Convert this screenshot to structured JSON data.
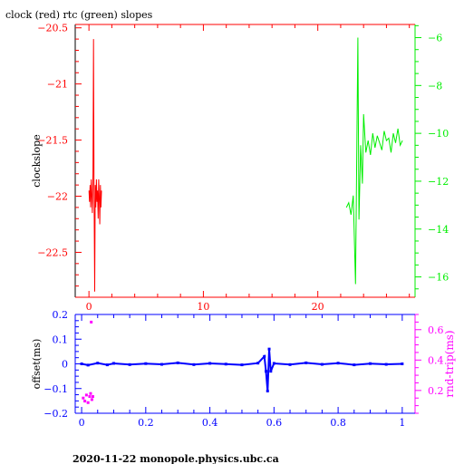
{
  "title": "clock (red) rtc (green) slopes",
  "footer": "2020-11-22 monopole.physics.ubc.ca",
  "colors": {
    "red": "#ff0000",
    "green": "#00ee00",
    "blue": "#0000ff",
    "magenta": "#ff00ff",
    "black": "#000000"
  },
  "chart_data": [
    {
      "type": "line",
      "title": "clock (red) rtc (green) slopes",
      "ylabel": "clockslope",
      "y2label": "",
      "xlim": [
        -1.2,
        28.5
      ],
      "ylim": [
        -22.9,
        -20.47
      ],
      "y2lim": [
        -16.85,
        -5.45
      ],
      "xticks": [
        0,
        10,
        20
      ],
      "yticks": [
        -20.5,
        -21,
        -21.5,
        -22,
        -22.5
      ],
      "y2ticks": [
        -6,
        -8,
        -10,
        -12,
        -14,
        -16
      ],
      "series": [
        {
          "name": "clock",
          "axis": "left",
          "color": "red",
          "x": [
            0.0,
            0.05,
            0.1,
            0.15,
            0.2,
            0.25,
            0.3,
            0.35,
            0.4,
            0.45,
            0.5,
            0.55,
            0.6,
            0.65,
            0.7,
            0.75,
            0.8,
            0.85,
            0.9,
            0.95,
            1.0,
            1.05,
            1.1
          ],
          "y": [
            -21.95,
            -22.05,
            -21.9,
            -22.1,
            -21.85,
            -22.0,
            -22.15,
            -21.8,
            -20.6,
            -22.0,
            -22.85,
            -21.9,
            -22.1,
            -21.85,
            -22.05,
            -21.95,
            -22.2,
            -21.85,
            -22.0,
            -22.25,
            -21.9,
            -22.1,
            -21.95
          ]
        },
        {
          "name": "rtc",
          "axis": "right",
          "color": "green",
          "x": [
            22.5,
            22.7,
            22.9,
            23.1,
            23.3,
            23.5,
            23.6,
            23.75,
            23.9,
            24.0,
            24.2,
            24.4,
            24.6,
            24.8,
            25.0,
            25.2,
            25.4,
            25.6,
            25.8,
            26.0,
            26.2,
            26.4,
            26.6,
            26.8,
            27.0,
            27.2,
            27.4
          ],
          "y": [
            -13.1,
            -12.9,
            -13.4,
            -12.6,
            -16.3,
            -6.0,
            -13.6,
            -10.5,
            -12.1,
            -9.2,
            -10.8,
            -10.3,
            -10.9,
            -10.0,
            -10.6,
            -10.1,
            -10.4,
            -10.7,
            -9.9,
            -10.3,
            -10.2,
            -10.8,
            -10.0,
            -10.4,
            -9.8,
            -10.5,
            -10.3
          ]
        }
      ]
    },
    {
      "type": "scatter",
      "ylabel": "offset(ms)",
      "y2label": "rnd-trip(ms)",
      "xlim": [
        -0.02,
        1.04
      ],
      "ylim": [
        -0.2,
        0.2
      ],
      "y2lim": [
        0.05,
        0.7
      ],
      "xticks": [
        0,
        0.2,
        0.4,
        0.6,
        0.8,
        1
      ],
      "yticks": [
        0.2,
        0.1,
        0,
        -0.1,
        -0.2
      ],
      "y2ticks": [
        0.6,
        0.4,
        0.2
      ],
      "series": [
        {
          "name": "offset",
          "axis": "left",
          "color": "blue",
          "x": [
            0.0,
            0.02,
            0.05,
            0.08,
            0.1,
            0.15,
            0.2,
            0.25,
            0.3,
            0.35,
            0.4,
            0.45,
            0.5,
            0.55,
            0.57,
            0.575,
            0.58,
            0.585,
            0.59,
            0.6,
            0.65,
            0.7,
            0.75,
            0.8,
            0.85,
            0.9,
            0.95,
            1.0
          ],
          "y": [
            0.0,
            -0.005,
            0.003,
            -0.004,
            0.002,
            -0.003,
            0.001,
            -0.002,
            0.004,
            -0.003,
            0.002,
            -0.001,
            -0.004,
            0.003,
            0.03,
            -0.03,
            -0.11,
            0.06,
            -0.03,
            0.002,
            -0.003,
            0.004,
            -0.002,
            0.003,
            -0.004,
            0.001,
            -0.002,
            0.0
          ]
        },
        {
          "name": "rnd-trip",
          "axis": "right",
          "color": "magenta",
          "x": [
            0.005,
            0.01,
            0.015,
            0.02,
            0.025,
            0.028,
            0.03,
            0.032,
            0.035
          ],
          "y": [
            0.15,
            0.13,
            0.17,
            0.12,
            0.16,
            0.18,
            0.65,
            0.14,
            0.16
          ]
        }
      ]
    }
  ]
}
